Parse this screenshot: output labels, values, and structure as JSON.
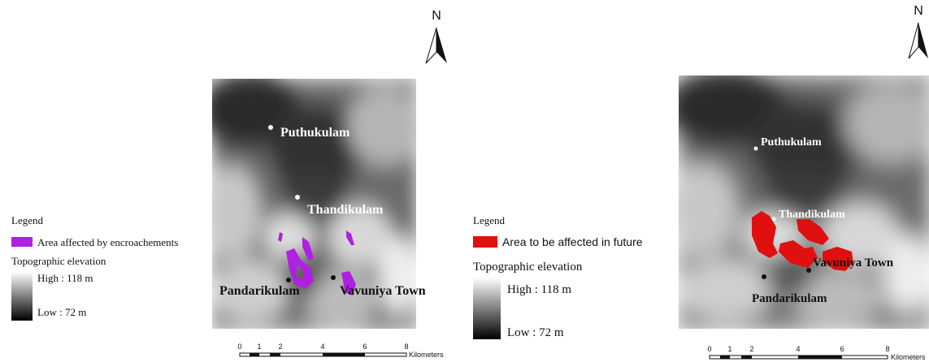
{
  "panels": [
    {
      "north": "N",
      "legend": {
        "title": "Legend",
        "item": "Area affected by encroachements",
        "elevation_title": "Topographic elevation",
        "high": "High : 118 m",
        "low": "Low : 72 m"
      },
      "places": [
        "Puthukulam",
        "Thandikulam",
        "Pandarikulam",
        "Vavuniya Town"
      ],
      "scale": {
        "ticks": [
          "0",
          "1",
          "2",
          "4",
          "6",
          "8"
        ],
        "unit": "Kilometers"
      }
    },
    {
      "north": "N",
      "legend": {
        "title": "Legend",
        "item": "Area to be affected in future",
        "elevation_title": "Topographic elevation",
        "high": "High : 118 m",
        "low": "Low : 72 m"
      },
      "places": [
        "Puthukulam",
        "Thandikulam",
        "Vavuniya Town",
        "Pandarikulam"
      ],
      "scale": {
        "ticks": [
          "0",
          "1",
          "2",
          "4",
          "6",
          "8"
        ],
        "unit": "Kilometers"
      }
    }
  ]
}
